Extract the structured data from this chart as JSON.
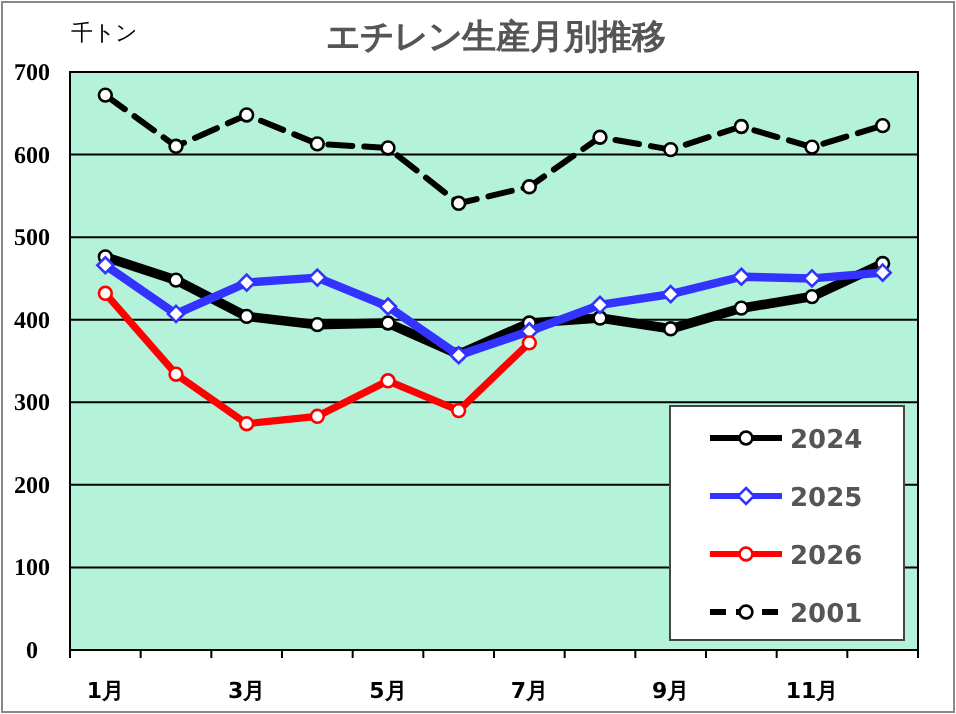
{
  "chart_data": {
    "type": "line",
    "title": "エチレン生産月別推移",
    "ylabel": "千トン",
    "categories": [
      "1月",
      null,
      "3月",
      null,
      "5月",
      null,
      "7月",
      null,
      "9月",
      null,
      "11月",
      null
    ],
    "ylim": [
      0,
      700
    ],
    "yticks": [
      0,
      100,
      200,
      300,
      400,
      500,
      600,
      700
    ],
    "grid": "y",
    "legend": "bottom right",
    "marker": "circle",
    "series": [
      {
        "name": "2024",
        "color": "#000000",
        "values": [
          476,
          448,
          404,
          394,
          396,
          358,
          396,
          402,
          389,
          414,
          428,
          468
        ]
      },
      {
        "name": "2025",
        "color": "#3333ff",
        "marker": "diamond",
        "values": [
          466,
          407,
          445,
          451,
          416,
          357,
          386,
          418,
          431,
          452,
          450,
          457
        ]
      },
      {
        "name": "2026",
        "color": "#ff0000",
        "values": [
          432,
          334,
          274,
          283,
          326,
          290,
          372,
          null,
          null,
          null,
          null,
          null
        ]
      },
      {
        "name": "2001",
        "color": "#000000",
        "line_style": "dashed",
        "values": [
          672,
          610,
          648,
          613,
          608,
          541,
          561,
          621,
          606,
          634,
          609,
          635
        ]
      }
    ]
  }
}
